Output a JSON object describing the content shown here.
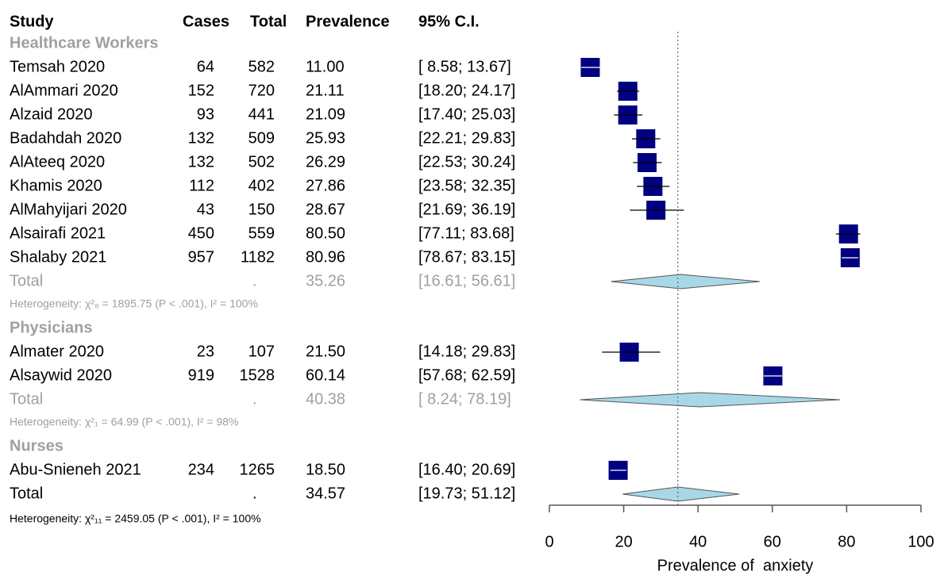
{
  "chart_data": {
    "type": "forest",
    "columns": [
      "Study",
      "Cases",
      "Total",
      "Prevalence",
      "95% C.I."
    ],
    "groups": [
      {
        "name": "Healthcare Workers",
        "studies": [
          "Temsah 2020",
          "AlAmmari 2020",
          "Alzaid 2020",
          "Badahdah 2020",
          "AlAteeq 2020",
          "Khamis 2020",
          "AlMahyijari 2020",
          "Alsairafi 2021",
          "Shalaby 2021"
        ],
        "cases": [
          64,
          152,
          93,
          132,
          132,
          112,
          43,
          450,
          957
        ],
        "totals": [
          582,
          720,
          441,
          509,
          502,
          402,
          150,
          559,
          1182
        ],
        "values": [
          11.0,
          21.11,
          21.09,
          25.93,
          26.29,
          27.86,
          28.67,
          80.5,
          80.96
        ],
        "value_labels": [
          "11.00",
          "21.11",
          "21.09",
          "25.93",
          "26.29",
          "27.86",
          "28.67",
          "80.50",
          "80.96"
        ],
        "lower": [
          8.58,
          18.2,
          17.4,
          22.21,
          22.53,
          23.58,
          21.69,
          77.11,
          78.67
        ],
        "upper": [
          13.67,
          24.17,
          25.03,
          29.83,
          30.24,
          32.35,
          36.19,
          83.68,
          83.15
        ],
        "ci_labels": [
          "[ 8.58; 13.67]",
          "[18.20; 24.17]",
          "[17.40; 25.03]",
          "[22.21; 29.83]",
          "[22.53; 30.24]",
          "[23.58; 32.35]",
          "[21.69; 36.19]",
          "[77.11; 83.68]",
          "[78.67; 83.15]"
        ],
        "pooled": {
          "label": "Total",
          "n": ".",
          "value": 35.26,
          "value_label": "35.26",
          "lower": 16.61,
          "upper": 56.61,
          "ci_label": "[16.61; 56.61]",
          "heterogeneity": "Heterogeneity: χ²₈ = 1895.75 (P < .001), I² = 100%"
        }
      },
      {
        "name": "Physicians",
        "studies": [
          "Almater 2020",
          "Alsaywid 2020"
        ],
        "cases": [
          23,
          919
        ],
        "totals": [
          107,
          1528
        ],
        "values": [
          21.5,
          60.14
        ],
        "value_labels": [
          "21.50",
          "60.14"
        ],
        "lower": [
          14.18,
          57.68
        ],
        "upper": [
          29.83,
          62.59
        ],
        "ci_labels": [
          "[14.18; 29.83]",
          "[57.68; 62.59]"
        ],
        "pooled": {
          "label": "Total",
          "n": ".",
          "value": 40.38,
          "value_label": "40.38",
          "lower": 8.24,
          "upper": 78.19,
          "ci_label": "[ 8.24; 78.19]",
          "heterogeneity": "Heterogeneity: χ²₁ = 64.99 (P < .001), I² = 98%"
        }
      },
      {
        "name": "Nurses",
        "studies": [
          "Abu-Snieneh 2021"
        ],
        "cases": [
          234
        ],
        "totals": [
          1265
        ],
        "values": [
          18.5
        ],
        "value_labels": [
          "18.50"
        ],
        "lower": [
          16.4
        ],
        "upper": [
          20.69
        ],
        "ci_labels": [
          "[16.40; 20.69]"
        ]
      }
    ],
    "overall": {
      "label": "Total",
      "n": ".",
      "value": 34.57,
      "value_label": "34.57",
      "lower": 19.73,
      "upper": 51.12,
      "ci_label": "[19.73; 51.12]",
      "heterogeneity": "Heterogeneity: χ²₁₁ = 2459.05 (P < .001), I² = 100%"
    },
    "x_label": "Prevalence of  anxiety",
    "xlim": [
      0,
      100
    ],
    "xticks": [
      0,
      20,
      40,
      60,
      80,
      100
    ],
    "square_color": "#000080",
    "diamond_color": "#a8d8e8"
  }
}
